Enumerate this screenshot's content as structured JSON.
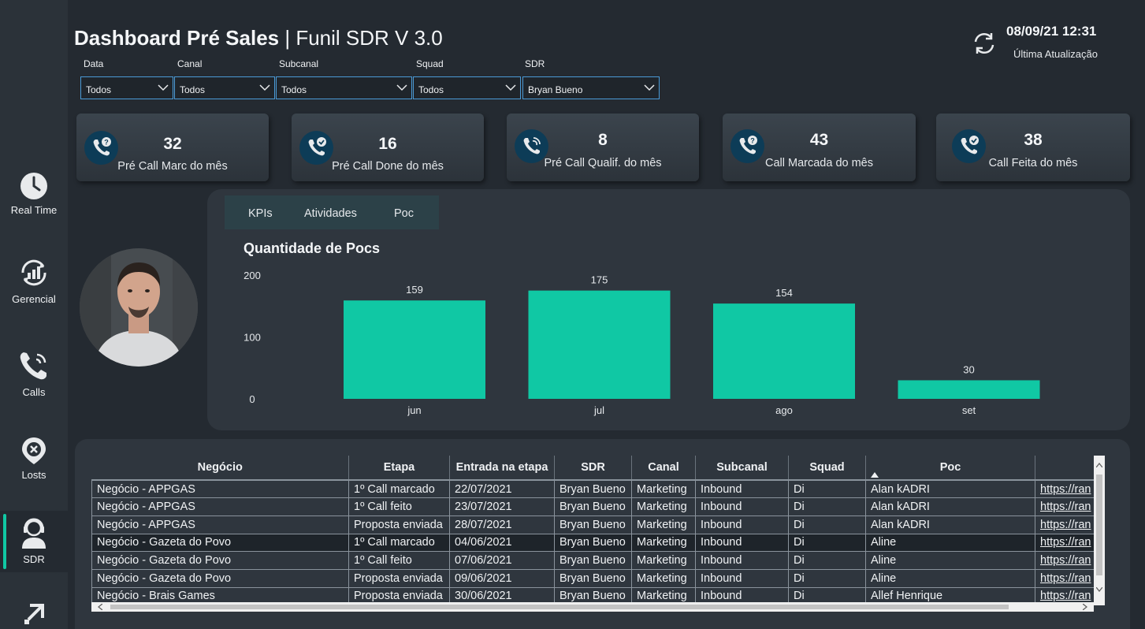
{
  "header": {
    "title_bold": "Dashboard Pré Sales",
    "title_sep": " | ",
    "title_rest": "Funil SDR V 3.0",
    "last_update_value": "08/09/21 12:31",
    "last_update_label": "Última Atualização"
  },
  "sidebar": {
    "items": [
      {
        "label": "Real Time",
        "icon": "clock-icon"
      },
      {
        "label": "Gerencial",
        "icon": "chart-growth-icon"
      },
      {
        "label": "Calls",
        "icon": "phone-icon"
      },
      {
        "label": "Losts",
        "icon": "location-x-icon"
      },
      {
        "label": "SDR",
        "icon": "user-headset-icon",
        "selected": true
      },
      {
        "label": "",
        "icon": "arrow-up-right-icon"
      }
    ]
  },
  "filters": [
    {
      "label": "Data",
      "value": "Todos"
    },
    {
      "label": "Canal",
      "value": "Todos"
    },
    {
      "label": "Subcanal",
      "value": "Todos"
    },
    {
      "label": "Squad",
      "value": "Todos"
    },
    {
      "label": "SDR",
      "value": "Bryan Bueno"
    }
  ],
  "kpis": [
    {
      "value": "32",
      "label": "Pré Call Marc do mês",
      "icon": "phone-question-icon"
    },
    {
      "value": "16",
      "label": "Pré Call Done do mês",
      "icon": "phone-check-icon"
    },
    {
      "value": "8",
      "label": "Pré Call Qualif. do mês",
      "icon": "phone-ring-icon"
    },
    {
      "value": "43",
      "label": "Call Marcada do mês",
      "icon": "phone-question-icon"
    },
    {
      "value": "38",
      "label": "Call Feita do mês",
      "icon": "phone-check-icon"
    }
  ],
  "tabs": [
    {
      "label": "KPIs"
    },
    {
      "label": "Atividades"
    },
    {
      "label": "Poc"
    }
  ],
  "chart_data": {
    "type": "bar",
    "title": "Quantidade de Pocs",
    "categories": [
      "jun",
      "jul",
      "ago",
      "set"
    ],
    "values": [
      159,
      175,
      154,
      30
    ],
    "yticks": [
      0,
      100,
      200
    ],
    "ylim": [
      0,
      200
    ],
    "grid": false,
    "bar_color": "#10c8a4"
  },
  "table": {
    "columns": [
      "Negócio",
      "Etapa",
      "Entrada na etapa",
      "SDR",
      "Canal",
      "Subcanal",
      "Squad",
      "Poc",
      ""
    ],
    "rows": [
      [
        "Negócio - APPGAS",
        "1º Call marcado",
        "22/07/2021",
        "Bryan Bueno",
        "Marketing",
        "Inbound",
        "Di",
        "Alan kADRI",
        "https://ran"
      ],
      [
        "Negócio - APPGAS",
        "1º Call feito",
        "23/07/2021",
        "Bryan Bueno",
        "Marketing",
        "Inbound",
        "Di",
        "Alan kADRI",
        "https://ran"
      ],
      [
        "Negócio - APPGAS",
        "Proposta enviada",
        "28/07/2021",
        "Bryan Bueno",
        "Marketing",
        "Inbound",
        "Di",
        "Alan kADRI",
        "https://ran"
      ],
      [
        "Negócio - Gazeta do Povo",
        "1º Call marcado",
        "04/06/2021",
        "Bryan Bueno",
        "Marketing",
        "Inbound",
        "Di",
        "Aline",
        "https://ran"
      ],
      [
        "Negócio - Gazeta do Povo",
        "1º Call feito",
        "07/06/2021",
        "Bryan Bueno",
        "Marketing",
        "Inbound",
        "Di",
        "Aline",
        "https://ran"
      ],
      [
        "Negócio - Gazeta do Povo",
        "Proposta enviada",
        "09/06/2021",
        "Bryan Bueno",
        "Marketing",
        "Inbound",
        "Di",
        "Aline",
        "https://ran"
      ],
      [
        "Negócio - Brais Games",
        "Proposta enviada",
        "30/06/2021",
        "Bryan Bueno",
        "Marketing",
        "Inbound",
        "Di",
        "Allef Henrique",
        "https://ran"
      ]
    ]
  }
}
